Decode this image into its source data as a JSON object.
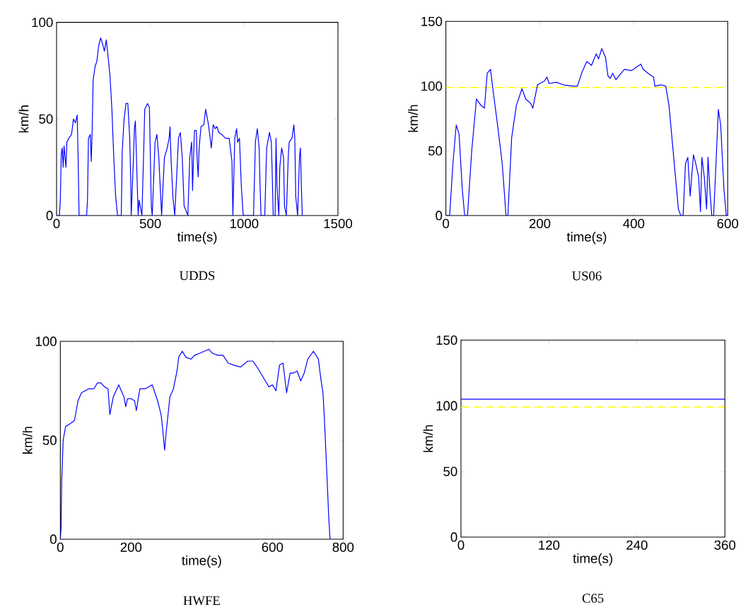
{
  "chart_data": [
    {
      "type": "line",
      "title": "UDDS",
      "xlabel": "time(s)",
      "ylabel": "km/h",
      "xlim": [
        0,
        1500
      ],
      "ylim": [
        0,
        100
      ],
      "xticks": [
        0,
        500,
        1000,
        1500
      ],
      "yticks": [
        0,
        50,
        100
      ],
      "series": [
        {
          "color": "#0000ff",
          "x": [
            0,
            15,
            20,
            25,
            30,
            35,
            40,
            50,
            55,
            65,
            80,
            90,
            100,
            110,
            115,
            120,
            160,
            165,
            170,
            180,
            185,
            190,
            195,
            205,
            215,
            225,
            235,
            245,
            255,
            265,
            275,
            285,
            295,
            305,
            315,
            325,
            345,
            350,
            360,
            370,
            380,
            390,
            395,
            398,
            410,
            415,
            420,
            425,
            435,
            440,
            455,
            465,
            470,
            485,
            495,
            500,
            505,
            510,
            520,
            525,
            535,
            545,
            555,
            560,
            575,
            590,
            600,
            605,
            610,
            620,
            630,
            640,
            650,
            660,
            670,
            680,
            700,
            710,
            720,
            725,
            730,
            735,
            745,
            750,
            755,
            760,
            770,
            785,
            795,
            810,
            815,
            825,
            835,
            845,
            855,
            865,
            880,
            900,
            920,
            935,
            940,
            950,
            960,
            965,
            975,
            985,
            995,
            1050,
            1060,
            1070,
            1080,
            1085,
            1090,
            1110,
            1120,
            1135,
            1145,
            1150,
            1155,
            1165,
            1170,
            1175,
            1185,
            1190,
            1200,
            1210,
            1215,
            1225,
            1235,
            1240,
            1255,
            1265,
            1270,
            1275,
            1285,
            1295,
            1300,
            1305,
            1310
          ],
          "values": [
            0,
            0,
            8,
            32,
            35,
            25,
            36,
            25,
            38,
            40,
            42,
            50,
            48,
            52,
            30,
            0,
            0,
            8,
            40,
            42,
            28,
            45,
            70,
            77,
            80,
            88,
            92,
            89,
            85,
            91,
            82,
            72,
            55,
            30,
            10,
            0,
            0,
            33,
            50,
            58,
            58,
            40,
            20,
            0,
            30,
            45,
            49,
            33,
            0,
            8,
            0,
            35,
            55,
            58,
            56,
            30,
            5,
            0,
            25,
            38,
            42,
            30,
            10,
            0,
            30,
            35,
            40,
            46,
            30,
            10,
            0,
            20,
            40,
            43,
            30,
            5,
            0,
            30,
            38,
            13,
            30,
            44,
            44,
            28,
            20,
            35,
            46,
            47,
            55,
            47,
            43,
            35,
            47,
            45,
            46,
            43,
            42,
            40,
            40,
            28,
            0,
            40,
            45,
            38,
            40,
            15,
            0,
            0,
            38,
            45,
            35,
            15,
            0,
            0,
            35,
            43,
            38,
            20,
            0,
            0,
            40,
            15,
            0,
            25,
            35,
            30,
            5,
            0,
            30,
            38,
            40,
            47,
            40,
            10,
            0,
            30,
            35,
            15,
            0
          ]
        }
      ]
    },
    {
      "type": "line",
      "title": "US06",
      "xlabel": "time(s)",
      "ylabel": "km/h",
      "xlim": [
        0,
        600
      ],
      "ylim": [
        0,
        150
      ],
      "xticks": [
        0,
        200,
        400,
        600
      ],
      "yticks": [
        0,
        50,
        100,
        150
      ],
      "ref_lines": [
        {
          "axis": "y",
          "value": 99,
          "color": "#ffff00",
          "line_style": "dashed"
        }
      ],
      "series": [
        {
          "color": "#0000ff",
          "x": [
            0,
            8,
            15,
            22,
            28,
            35,
            40,
            46,
            55,
            65,
            75,
            82,
            88,
            95,
            100,
            110,
            120,
            128,
            132,
            140,
            150,
            162,
            170,
            180,
            185,
            195,
            210,
            215,
            220,
            235,
            250,
            270,
            280,
            290,
            300,
            310,
            320,
            325,
            332,
            340,
            345,
            350,
            355,
            362,
            380,
            395,
            415,
            420,
            430,
            442,
            445,
            458,
            468,
            475,
            485,
            495,
            500,
            505,
            510,
            515,
            520,
            527,
            532,
            538,
            542,
            545,
            550,
            555,
            558,
            562,
            566,
            570,
            575,
            580,
            585,
            592,
            597,
            600
          ],
          "values": [
            0,
            0,
            40,
            70,
            63,
            20,
            0,
            0,
            50,
            90,
            85,
            83,
            110,
            113,
            98,
            70,
            40,
            0,
            0,
            60,
            85,
            98,
            90,
            87,
            83,
            101,
            104,
            107,
            102,
            103,
            101,
            100,
            100,
            111,
            119,
            116,
            125,
            121,
            129,
            122,
            108,
            106,
            110,
            105,
            113,
            112,
            117,
            113,
            110,
            107,
            100,
            101,
            100,
            85,
            45,
            5,
            0,
            0,
            40,
            45,
            15,
            47,
            40,
            30,
            3,
            45,
            30,
            5,
            45,
            20,
            0,
            0,
            40,
            82,
            70,
            20,
            0,
            0
          ]
        }
      ]
    },
    {
      "type": "line",
      "title": "HWFE",
      "xlabel": "time(s)",
      "ylabel": "km/h",
      "xlim": [
        0,
        800
      ],
      "ylim": [
        0,
        100
      ],
      "xticks": [
        0,
        200,
        600,
        800
      ],
      "yticks": [
        0,
        50,
        100
      ],
      "series": [
        {
          "color": "#0000ff",
          "x": [
            0,
            2,
            4,
            8,
            15,
            25,
            40,
            50,
            60,
            80,
            95,
            105,
            115,
            125,
            135,
            140,
            150,
            165,
            180,
            185,
            190,
            200,
            210,
            215,
            225,
            240,
            260,
            275,
            285,
            290,
            295,
            300,
            310,
            320,
            330,
            335,
            345,
            355,
            370,
            380,
            395,
            420,
            430,
            445,
            460,
            475,
            490,
            510,
            530,
            545,
            560,
            580,
            590,
            600,
            610,
            620,
            630,
            640,
            650,
            660,
            670,
            680,
            690,
            700,
            716,
            730,
            737,
            743,
            747,
            752,
            756,
            759,
            763
          ],
          "values": [
            0,
            5,
            30,
            50,
            57,
            58,
            60,
            70,
            74,
            76,
            76,
            79,
            79,
            77,
            76,
            63,
            72,
            78,
            72,
            67,
            71,
            71,
            70,
            65,
            76,
            76,
            78,
            70,
            63,
            55,
            45,
            55,
            72,
            76,
            85,
            92,
            95,
            92,
            91,
            93,
            94,
            96,
            94,
            93,
            93,
            89,
            88,
            87,
            90,
            90,
            86,
            80,
            77,
            78,
            75,
            88,
            89,
            74,
            84,
            84,
            85,
            80,
            84,
            91,
            95,
            91,
            81,
            74,
            61,
            41,
            25,
            12,
            0
          ]
        }
      ]
    },
    {
      "type": "line",
      "title": "C65",
      "xlabel": "time(s)",
      "ylabel": "km/h",
      "xlim": [
        0,
        360
      ],
      "ylim": [
        0,
        150
      ],
      "xticks": [
        0,
        120,
        240,
        360
      ],
      "yticks": [
        0,
        50,
        100,
        150
      ],
      "ref_lines": [
        {
          "axis": "y",
          "value": 99,
          "color": "#ffff00",
          "line_style": "dashed"
        }
      ],
      "series": [
        {
          "color": "#0000ff",
          "x": [
            0,
            360
          ],
          "values": [
            105,
            105
          ]
        }
      ]
    }
  ]
}
